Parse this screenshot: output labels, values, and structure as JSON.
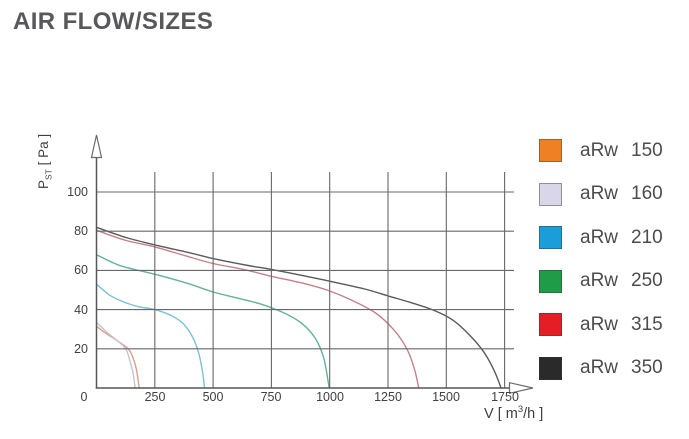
{
  "chart_data": {
    "type": "line",
    "title": "AIR FLOW/SIZES",
    "title_color": "#57585b",
    "xlabel": "V [ m³/h ]",
    "ylabel": "Pst [ Pa ]",
    "xlabel_parts": {
      "pre": "V [ m",
      "sup": "3",
      "post": "/h ]"
    },
    "ylabel_parts": {
      "pre": "P",
      "sub": "ST",
      "post": " [ Pa ]"
    },
    "xlim": [
      0,
      1860
    ],
    "ylim": [
      0,
      110
    ],
    "x_ticks": [
      0,
      250,
      500,
      750,
      1000,
      1250,
      1500,
      1750
    ],
    "y_ticks": [
      0,
      20,
      40,
      60,
      80,
      100
    ],
    "grid": true,
    "grid_color": "#67686c",
    "axis_color": "#55565a",
    "legend_position": "right",
    "series": [
      {
        "name": "aRw 150",
        "model": "aRw",
        "size": "150",
        "legend_color": "#ef8023",
        "curve_color": "#dca084",
        "points": [
          [
            0,
            31.5
          ],
          [
            45,
            27.5
          ],
          [
            85,
            24.5
          ],
          [
            115,
            22
          ],
          [
            140,
            19.5
          ],
          [
            158,
            15
          ],
          [
            172,
            9
          ],
          [
            183,
            0
          ]
        ]
      },
      {
        "name": "aRw 160",
        "model": "aRw",
        "size": "160",
        "legend_color": "#d9d6e9",
        "curve_color": "#c7c2d8",
        "points": [
          [
            0,
            33.5
          ],
          [
            40,
            29
          ],
          [
            75,
            25.5
          ],
          [
            105,
            22.5
          ],
          [
            128,
            19.5
          ],
          [
            143,
            14
          ],
          [
            156,
            8
          ],
          [
            166,
            0
          ]
        ]
      },
      {
        "name": "aRw 210",
        "model": "aRw",
        "size": "210",
        "legend_color": "#1b9dd9",
        "curve_color": "#7ac2d7",
        "points": [
          [
            0,
            53
          ],
          [
            55,
            47.5
          ],
          [
            115,
            44
          ],
          [
            180,
            41.5
          ],
          [
            250,
            40
          ],
          [
            320,
            37
          ],
          [
            370,
            33
          ],
          [
            410,
            26.5
          ],
          [
            438,
            18
          ],
          [
            455,
            8
          ],
          [
            463,
            0
          ]
        ]
      },
      {
        "name": "aRw 250",
        "model": "aRw",
        "size": "250",
        "legend_color": "#209b48",
        "curve_color": "#62b29b",
        "points": [
          [
            0,
            68
          ],
          [
            100,
            62.5
          ],
          [
            200,
            59.5
          ],
          [
            300,
            56.5
          ],
          [
            400,
            53
          ],
          [
            500,
            49
          ],
          [
            600,
            46
          ],
          [
            700,
            43
          ],
          [
            800,
            38.5
          ],
          [
            880,
            33
          ],
          [
            940,
            25
          ],
          [
            975,
            15
          ],
          [
            998,
            0
          ]
        ]
      },
      {
        "name": "aRw 315",
        "model": "aRw",
        "size": "315",
        "legend_color": "#e31e24",
        "curve_color": "#c48287",
        "points": [
          [
            0,
            80.5
          ],
          [
            120,
            75.5
          ],
          [
            250,
            72
          ],
          [
            380,
            67.5
          ],
          [
            500,
            63.5
          ],
          [
            630,
            60.5
          ],
          [
            750,
            57
          ],
          [
            900,
            53
          ],
          [
            1000,
            49.5
          ],
          [
            1100,
            44.5
          ],
          [
            1200,
            38
          ],
          [
            1280,
            29
          ],
          [
            1335,
            19
          ],
          [
            1365,
            9
          ],
          [
            1382,
            0
          ]
        ]
      },
      {
        "name": "aRw 350",
        "model": "aRw",
        "size": "350",
        "legend_color": "#2b2a29",
        "curve_color": "#5a595b",
        "points": [
          [
            0,
            82
          ],
          [
            120,
            77
          ],
          [
            250,
            73
          ],
          [
            400,
            69
          ],
          [
            500,
            66
          ],
          [
            650,
            62.5
          ],
          [
            750,
            60.5
          ],
          [
            900,
            57
          ],
          [
            1000,
            54.5
          ],
          [
            1150,
            50.5
          ],
          [
            1250,
            47
          ],
          [
            1350,
            43.5
          ],
          [
            1450,
            39.5
          ],
          [
            1530,
            34.5
          ],
          [
            1600,
            27
          ],
          [
            1660,
            18.5
          ],
          [
            1705,
            9
          ],
          [
            1735,
            0
          ]
        ]
      }
    ]
  }
}
